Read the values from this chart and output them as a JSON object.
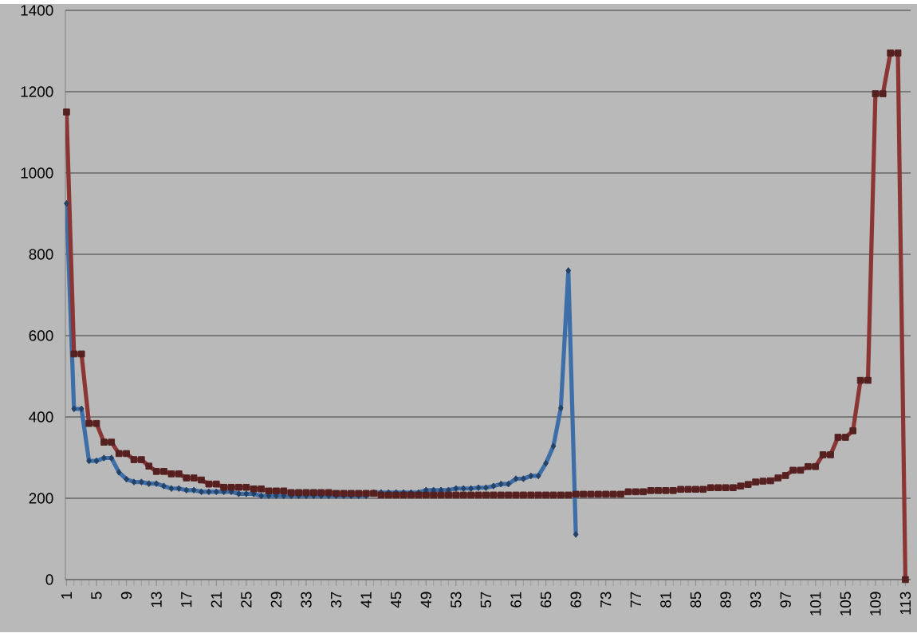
{
  "chart_data": {
    "type": "line",
    "categories": [
      "1",
      null,
      null,
      null,
      "5",
      null,
      null,
      null,
      "9",
      null,
      null,
      null,
      "13",
      null,
      null,
      null,
      "17",
      null,
      null,
      null,
      "21",
      null,
      null,
      null,
      "25",
      null,
      null,
      null,
      "29",
      null,
      null,
      null,
      "33",
      null,
      null,
      null,
      "37",
      null,
      null,
      null,
      "41",
      null,
      null,
      null,
      "45",
      null,
      null,
      null,
      "49",
      null,
      null,
      null,
      "53",
      null,
      null,
      null,
      "57",
      null,
      null,
      null,
      "61",
      null,
      null,
      null,
      "65",
      null,
      null,
      null,
      "69",
      null,
      null,
      null,
      "73",
      null,
      null,
      null,
      "77",
      null,
      null,
      null,
      "81",
      null,
      null,
      null,
      "85",
      null,
      null,
      null,
      "89",
      null,
      null,
      null,
      "93",
      null,
      null,
      null,
      "97",
      null,
      null,
      null,
      "101",
      null,
      null,
      null,
      "105",
      null,
      null,
      null,
      "109",
      null,
      null,
      null,
      "113"
    ],
    "series": [
      {
        "color": "#3d6ea8",
        "marker": "diamond",
        "values": [
          925,
          420,
          420,
          292,
          292,
          299,
          299,
          264,
          247,
          240,
          240,
          236,
          236,
          230,
          224,
          224,
          220,
          220,
          216,
          216,
          216,
          216,
          216,
          211,
          211,
          211,
          206,
          206,
          206,
          206,
          206,
          206,
          206,
          206,
          206,
          206,
          206,
          206,
          206,
          206,
          206,
          214,
          214,
          214,
          214,
          214,
          214,
          214,
          220,
          220,
          220,
          220,
          224,
          224,
          224,
          226,
          226,
          230,
          235,
          235,
          248,
          248,
          255,
          255,
          286,
          328,
          422,
          760,
          111,
          null,
          null,
          null,
          null,
          null,
          null,
          null,
          null,
          null,
          null,
          null,
          null,
          null,
          null,
          null,
          null,
          null,
          null,
          null,
          null,
          null,
          null,
          null,
          null,
          null,
          null,
          null,
          null,
          null,
          null,
          null,
          null,
          null,
          null,
          null,
          null,
          null,
          null,
          null,
          null,
          null,
          null,
          null,
          null
        ]
      },
      {
        "color": "#8c3535",
        "marker": "square",
        "values": [
          1150,
          555,
          555,
          384,
          384,
          338,
          338,
          310,
          310,
          295,
          295,
          279,
          266,
          266,
          260,
          260,
          250,
          250,
          245,
          235,
          235,
          227,
          227,
          227,
          227,
          223,
          223,
          218,
          218,
          218,
          214,
          214,
          214,
          214,
          214,
          214,
          212,
          212,
          212,
          212,
          212,
          212,
          208,
          208,
          208,
          208,
          208,
          208,
          208,
          208,
          208,
          208,
          208,
          208,
          208,
          208,
          208,
          208,
          208,
          208,
          208,
          208,
          208,
          208,
          208,
          208,
          208,
          208,
          210,
          210,
          210,
          210,
          210,
          210,
          210,
          216,
          216,
          216,
          219,
          219,
          219,
          219,
          222,
          222,
          222,
          222,
          226,
          226,
          226,
          226,
          230,
          234,
          240,
          242,
          243,
          250,
          256,
          269,
          269,
          278,
          278,
          307,
          307,
          350,
          350,
          366,
          490,
          490,
          1195,
          1195,
          1295,
          1295,
          0
        ]
      }
    ],
    "ylim": [
      0,
      1400
    ],
    "yticks": [
      0,
      200,
      400,
      600,
      800,
      1000,
      1200,
      1400
    ],
    "grid": "y"
  }
}
